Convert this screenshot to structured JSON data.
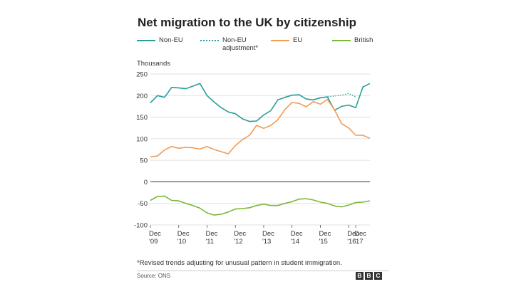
{
  "title": "Net migration to the UK by citizenship",
  "legend": {
    "non_eu": "Non-EU",
    "adjustment_line1": "Non-EU",
    "adjustment_line2": "adjustment*",
    "eu": "EU",
    "british": "British"
  },
  "colors": {
    "non_eu": "#2a9d9a",
    "adjustment": "#2a9d9a",
    "eu": "#f39a53",
    "british": "#7ab83a",
    "grid": "#d9d9d9",
    "zero": "#333333"
  },
  "footnote": "*Revised trends adjusting for unusual pattern in student immigration.",
  "source": "Source: ONS",
  "logo": [
    "B",
    "B",
    "C"
  ],
  "chart_data": {
    "type": "line",
    "title": "Net migration to the UK by citizenship",
    "ylabel": "Thousands",
    "xlabel": "",
    "ylim": [
      -100,
      250
    ],
    "yticks": [
      250,
      200,
      150,
      100,
      50,
      0,
      -50,
      -100
    ],
    "xlim": [
      2009.75,
      2017.0
    ],
    "xticks": [
      {
        "x": 2009.75,
        "line1": "Dec",
        "line2": "'09"
      },
      {
        "x": 2010.75,
        "line1": "Dec",
        "line2": "'10"
      },
      {
        "x": 2011.75,
        "line1": "Dec",
        "line2": "'11"
      },
      {
        "x": 2012.75,
        "line1": "Dec",
        "line2": "'12"
      },
      {
        "x": 2013.75,
        "line1": "Dec",
        "line2": "'13"
      },
      {
        "x": 2014.75,
        "line1": "Dec",
        "line2": "'14"
      },
      {
        "x": 2015.75,
        "line1": "Dec",
        "line2": "'15"
      },
      {
        "x": 2016.75,
        "line1": "Dec",
        "line2": "'16"
      },
      {
        "x": 2017.0,
        "line1": "Dec",
        "line2": "'17"
      }
    ],
    "grid": true,
    "legend_position": "top",
    "series": [
      {
        "name": "Non-EU",
        "key": "non_eu",
        "style": "solid",
        "x": [
          2009.75,
          2010.0,
          2010.25,
          2010.5,
          2010.75,
          2011.0,
          2011.25,
          2011.5,
          2011.75,
          2012.0,
          2012.25,
          2012.5,
          2012.75,
          2013.0,
          2013.25,
          2013.5,
          2013.75,
          2014.0,
          2014.25,
          2014.5,
          2014.75,
          2015.0,
          2015.25,
          2015.5,
          2015.75,
          2016.0,
          2016.25,
          2016.5,
          2016.75,
          2017.0
        ],
        "y": [
          183,
          200,
          196,
          219,
          218,
          216,
          222,
          228,
          200,
          185,
          172,
          162,
          158,
          146,
          140,
          141,
          155,
          165,
          190,
          196,
          201,
          202,
          192,
          190,
          195,
          197,
          166,
          175,
          178,
          172
        ]
      },
      {
        "name": "Non-EU adjustment*",
        "key": "adjustment",
        "style": "dotted",
        "x": [
          2015.75,
          2016.0,
          2016.25,
          2016.5,
          2016.75,
          2017.0
        ],
        "y": [
          195,
          197,
          199,
          201,
          205,
          197
        ]
      },
      {
        "name": "EU",
        "key": "eu",
        "style": "solid",
        "x": [
          2009.75,
          2010.0,
          2010.25,
          2010.5,
          2010.75,
          2011.0,
          2011.25,
          2011.5,
          2011.75,
          2012.0,
          2012.25,
          2012.5,
          2012.75,
          2013.0,
          2013.25,
          2013.5,
          2013.75,
          2014.0,
          2014.25,
          2014.5,
          2014.75,
          2015.0,
          2015.25,
          2015.5,
          2015.75,
          2016.0,
          2016.25,
          2016.5,
          2016.75,
          2017.0
        ],
        "y": [
          58,
          60,
          74,
          82,
          78,
          80,
          79,
          76,
          82,
          75,
          70,
          65,
          84,
          98,
          108,
          131,
          124,
          131,
          144,
          168,
          184,
          182,
          174,
          186,
          180,
          191,
          167,
          135,
          125,
          108
        ]
      },
      {
        "name": "British",
        "key": "british",
        "style": "solid",
        "x": [
          2009.75,
          2010.0,
          2010.25,
          2010.5,
          2010.75,
          2011.0,
          2011.25,
          2011.5,
          2011.75,
          2012.0,
          2012.25,
          2012.5,
          2012.75,
          2013.0,
          2013.25,
          2013.5,
          2013.75,
          2014.0,
          2014.25,
          2014.5,
          2014.75,
          2015.0,
          2015.25,
          2015.5,
          2015.75,
          2016.0,
          2016.25,
          2016.5,
          2016.75,
          2017.0
        ],
        "y": [
          -43,
          -34,
          -33,
          -43,
          -44,
          -50,
          -55,
          -61,
          -72,
          -77,
          -75,
          -70,
          -63,
          -62,
          -60,
          -55,
          -52,
          -55,
          -55,
          -50,
          -46,
          -40,
          -39,
          -42,
          -47,
          -50,
          -56,
          -58,
          -54,
          -48
        ]
      }
    ],
    "tail": {
      "non_eu": {
        "x": [
          2017.0,
          2017.25,
          2017.5
        ],
        "y": [
          172,
          220,
          228
        ]
      },
      "eu": {
        "x": [
          2017.0,
          2017.25,
          2017.5
        ],
        "y": [
          108,
          108,
          101
        ]
      },
      "british": {
        "x": [
          2017.0,
          2017.25,
          2017.5
        ],
        "y": [
          -48,
          -47,
          -44
        ]
      }
    }
  }
}
